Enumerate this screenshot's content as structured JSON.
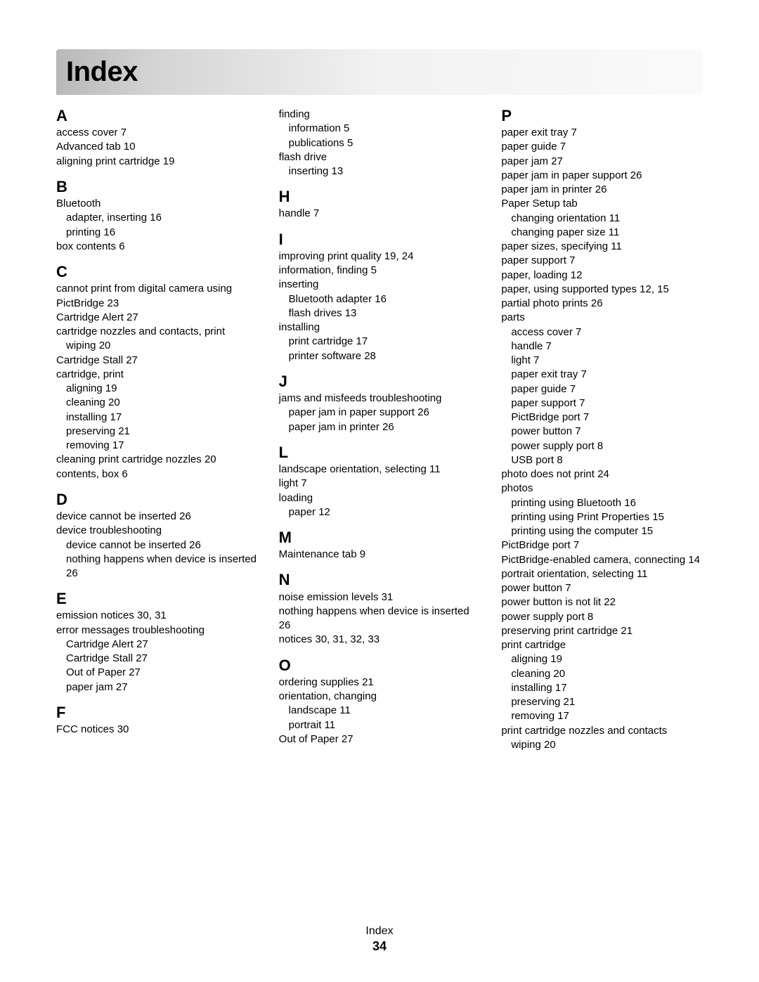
{
  "title": "Index",
  "footer": {
    "label": "Index",
    "page": "34"
  },
  "columns": [
    {
      "sections": [
        {
          "letter": "A",
          "entries": [
            {
              "text": "access cover  7"
            },
            {
              "text": "Advanced tab  10"
            },
            {
              "text": "aligning print cartridge  19"
            }
          ]
        },
        {
          "letter": "B",
          "entries": [
            {
              "text": "Bluetooth"
            },
            {
              "text": "adapter, inserting  16",
              "sub": true
            },
            {
              "text": "printing  16",
              "sub": true
            },
            {
              "text": "box contents  6"
            }
          ]
        },
        {
          "letter": "C",
          "entries": [
            {
              "text": "cannot print from digital camera using PictBridge  23"
            },
            {
              "text": "Cartridge Alert  27"
            },
            {
              "text": "cartridge nozzles and contacts, print"
            },
            {
              "text": "wiping  20",
              "sub": true
            },
            {
              "text": "Cartridge Stall  27"
            },
            {
              "text": "cartridge, print"
            },
            {
              "text": "aligning  19",
              "sub": true
            },
            {
              "text": "cleaning  20",
              "sub": true
            },
            {
              "text": "installing  17",
              "sub": true
            },
            {
              "text": "preserving  21",
              "sub": true
            },
            {
              "text": "removing  17",
              "sub": true
            },
            {
              "text": "cleaning print cartridge nozzles  20"
            },
            {
              "text": "contents, box  6"
            }
          ]
        },
        {
          "letter": "D",
          "entries": [
            {
              "text": "device cannot be inserted  26"
            },
            {
              "text": "device troubleshooting"
            },
            {
              "text": "device cannot be inserted  26",
              "sub": true
            },
            {
              "text": "nothing happens when device is inserted  26",
              "sub": true
            }
          ]
        },
        {
          "letter": "E",
          "entries": [
            {
              "text": "emission notices  30, 31"
            },
            {
              "text": "error messages troubleshooting"
            },
            {
              "text": "Cartridge Alert  27",
              "sub": true
            },
            {
              "text": "Cartridge Stall  27",
              "sub": true
            },
            {
              "text": "Out of Paper  27",
              "sub": true
            },
            {
              "text": "paper jam  27",
              "sub": true
            }
          ]
        },
        {
          "letter": "F",
          "entries": [
            {
              "text": "FCC notices  30"
            }
          ]
        }
      ]
    },
    {
      "sections": [
        {
          "entries": [
            {
              "text": "finding"
            },
            {
              "text": "information  5",
              "sub": true
            },
            {
              "text": "publications  5",
              "sub": true
            },
            {
              "text": "flash drive"
            },
            {
              "text": "inserting  13",
              "sub": true
            }
          ]
        },
        {
          "letter": "H",
          "entries": [
            {
              "text": "handle  7"
            }
          ]
        },
        {
          "letter": "I",
          "entries": [
            {
              "text": "improving print quality  19, 24"
            },
            {
              "text": "information, finding  5"
            },
            {
              "text": "inserting"
            },
            {
              "text": "Bluetooth adapter  16",
              "sub": true
            },
            {
              "text": "flash drives  13",
              "sub": true
            },
            {
              "text": "installing"
            },
            {
              "text": "print cartridge  17",
              "sub": true
            },
            {
              "text": "printer software  28",
              "sub": true
            }
          ]
        },
        {
          "letter": "J",
          "entries": [
            {
              "text": "jams and misfeeds troubleshooting"
            },
            {
              "text": "paper jam in paper support  26",
              "sub": true
            },
            {
              "text": "paper jam in printer  26",
              "sub": true
            }
          ]
        },
        {
          "letter": "L",
          "entries": [
            {
              "text": "landscape orientation, selecting  11"
            },
            {
              "text": "light  7"
            },
            {
              "text": "loading"
            },
            {
              "text": "paper  12",
              "sub": true
            }
          ]
        },
        {
          "letter": "M",
          "entries": [
            {
              "text": "Maintenance tab  9"
            }
          ]
        },
        {
          "letter": "N",
          "entries": [
            {
              "text": "noise emission levels  31"
            },
            {
              "text": "nothing happens when device is inserted  26"
            },
            {
              "text": "notices  30, 31, 32, 33"
            }
          ]
        },
        {
          "letter": "O",
          "entries": [
            {
              "text": "ordering supplies  21"
            },
            {
              "text": "orientation, changing"
            },
            {
              "text": "landscape  11",
              "sub": true
            },
            {
              "text": "portrait  11",
              "sub": true
            },
            {
              "text": "Out of Paper  27"
            }
          ]
        }
      ]
    },
    {
      "sections": [
        {
          "letter": "P",
          "entries": [
            {
              "text": "paper exit tray  7"
            },
            {
              "text": "paper guide  7"
            },
            {
              "text": "paper jam  27"
            },
            {
              "text": "paper jam in paper support  26"
            },
            {
              "text": "paper jam in printer  26"
            },
            {
              "text": "Paper Setup tab"
            },
            {
              "text": "changing orientation  11",
              "sub": true
            },
            {
              "text": "changing paper size  11",
              "sub": true
            },
            {
              "text": "paper sizes, specifying  11"
            },
            {
              "text": "paper support  7"
            },
            {
              "text": "paper, loading  12"
            },
            {
              "text": "paper, using supported types  12, 15"
            },
            {
              "text": "partial photo prints  26"
            },
            {
              "text": "parts"
            },
            {
              "text": "access cover  7",
              "sub": true
            },
            {
              "text": "handle  7",
              "sub": true
            },
            {
              "text": "light  7",
              "sub": true
            },
            {
              "text": "paper exit tray  7",
              "sub": true
            },
            {
              "text": "paper guide  7",
              "sub": true
            },
            {
              "text": "paper support  7",
              "sub": true
            },
            {
              "text": "PictBridge port  7",
              "sub": true
            },
            {
              "text": "power button  7",
              "sub": true
            },
            {
              "text": "power supply port  8",
              "sub": true
            },
            {
              "text": "USB port  8",
              "sub": true
            },
            {
              "text": "photo does not print  24"
            },
            {
              "text": "photos"
            },
            {
              "text": "printing using Bluetooth  16",
              "sub": true
            },
            {
              "text": "printing using Print Properties  15",
              "sub": true
            },
            {
              "text": "printing using the computer  15",
              "sub": true
            },
            {
              "text": "PictBridge port  7"
            },
            {
              "text": "PictBridge-enabled camera, connecting  14"
            },
            {
              "text": "portrait orientation, selecting  11"
            },
            {
              "text": "power button  7"
            },
            {
              "text": "power button is not lit  22"
            },
            {
              "text": "power supply port  8"
            },
            {
              "text": "preserving print cartridge  21"
            },
            {
              "text": "print cartridge"
            },
            {
              "text": "aligning  19",
              "sub": true
            },
            {
              "text": "cleaning  20",
              "sub": true
            },
            {
              "text": "installing  17",
              "sub": true
            },
            {
              "text": "preserving  21",
              "sub": true
            },
            {
              "text": "removing  17",
              "sub": true
            },
            {
              "text": "print cartridge nozzles and contacts"
            },
            {
              "text": "wiping  20",
              "sub": true
            }
          ]
        }
      ]
    }
  ]
}
